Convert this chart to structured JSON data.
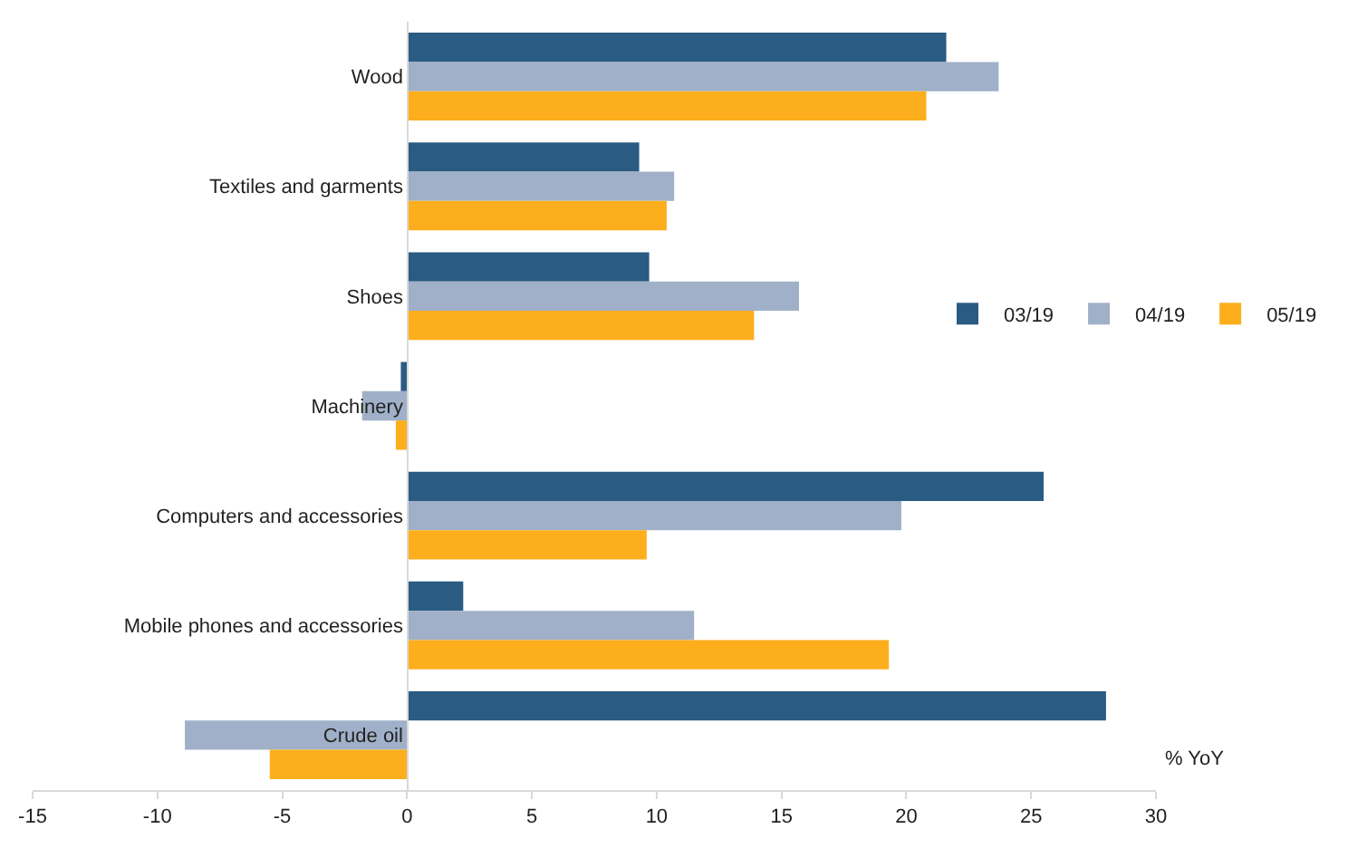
{
  "chart_data": {
    "type": "bar",
    "orientation": "horizontal",
    "categories": [
      "Wood",
      "Textiles and garments",
      "Shoes",
      "Machinery",
      "Computers and accessories",
      "Mobile phones and accessories",
      "Crude oil"
    ],
    "series": [
      {
        "name": "03/19",
        "color": "#2a5b83",
        "values": [
          21.6,
          9.3,
          9.7,
          -0.25,
          25.5,
          2.25,
          28.0
        ]
      },
      {
        "name": "04/19",
        "color": "#a0b0c8",
        "values": [
          23.7,
          10.7,
          15.7,
          -1.8,
          19.8,
          11.5,
          -8.9
        ]
      },
      {
        "name": "05/19",
        "color": "#fdae1c",
        "values": [
          20.8,
          10.4,
          13.9,
          -0.45,
          9.6,
          19.3,
          -5.5
        ]
      }
    ],
    "xlim": [
      -15,
      30
    ],
    "xticks": [
      -15,
      -10,
      -5,
      0,
      5,
      10,
      15,
      20,
      25,
      30
    ],
    "grid": false,
    "legend": "right",
    "annotations": [
      "% YoY"
    ]
  }
}
